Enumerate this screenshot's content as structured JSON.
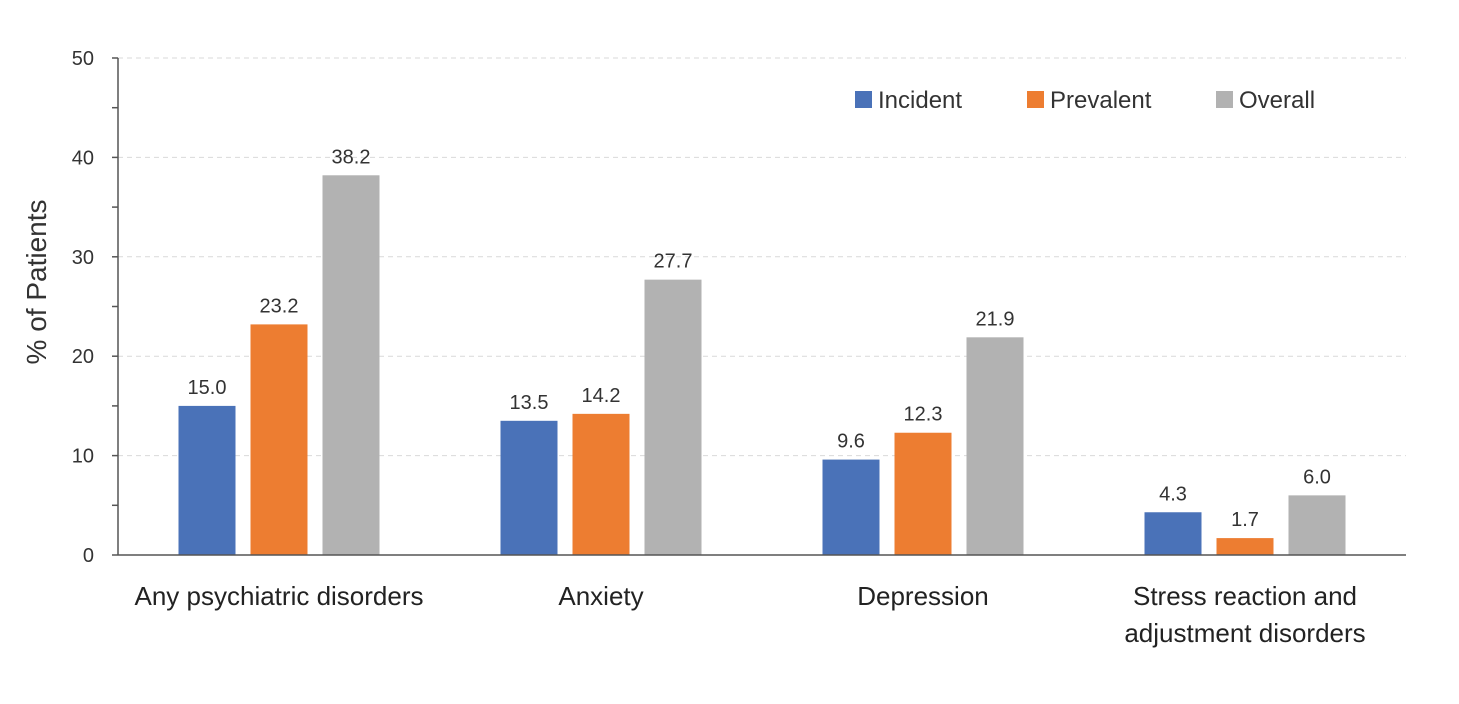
{
  "chart_data": {
    "type": "bar",
    "title": "",
    "xlabel": "",
    "ylabel": "% of Patients",
    "ylim": [
      0,
      50
    ],
    "yticks": [
      0,
      10,
      20,
      30,
      40,
      50
    ],
    "grid": true,
    "legend_position": "top-right",
    "categories": [
      [
        "Any psychiatric disorders"
      ],
      [
        "Anxiety"
      ],
      [
        "Depression"
      ],
      [
        "Stress reaction and",
        "adjustment disorders"
      ]
    ],
    "series": [
      {
        "name": "Incident",
        "color": "#4a72b8",
        "values": [
          15.0,
          13.5,
          9.6,
          4.3
        ],
        "labels": [
          "15.0",
          "13.5",
          "9.6",
          "4.3"
        ]
      },
      {
        "name": "Prevalent",
        "color": "#ed7d31",
        "values": [
          23.2,
          14.2,
          12.3,
          1.7
        ],
        "labels": [
          "23.2",
          "14.2",
          "12.3",
          "1.7"
        ]
      },
      {
        "name": "Overall",
        "color": "#b2b2b2",
        "values": [
          38.2,
          27.7,
          21.9,
          6.0
        ],
        "labels": [
          "38.2",
          "27.7",
          "21.9",
          "6.0"
        ]
      }
    ]
  }
}
